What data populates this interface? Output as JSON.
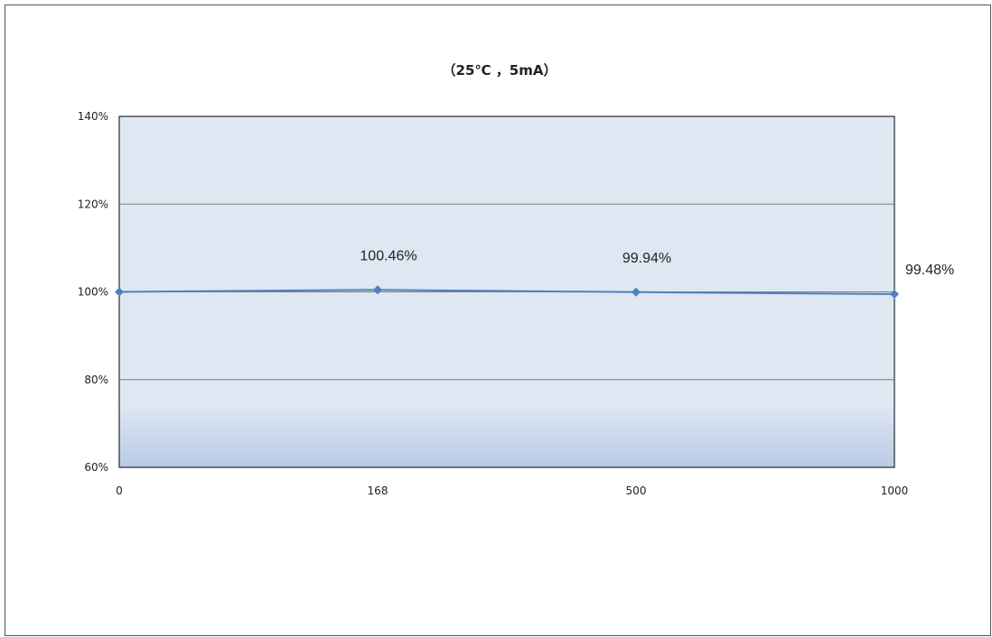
{
  "chart_data": {
    "type": "line",
    "title": "（25℃ ，5mA）",
    "xlabel": "",
    "ylabel": "",
    "categories": [
      "0",
      "168",
      "500",
      "1000"
    ],
    "series": [
      {
        "values": [
          100,
          100.46,
          99.94,
          99.48
        ],
        "data_labels": [
          "",
          "100.46%",
          "99.94%",
          "99.48%"
        ],
        "color": "#4f81bd"
      }
    ],
    "ylim": [
      60,
      140
    ],
    "y_ticks": [
      60,
      80,
      100,
      120,
      140
    ],
    "y_tick_labels": [
      "60%",
      "80%",
      "100%",
      "120%",
      "140%"
    ],
    "grid": true,
    "legend": "none",
    "plot_background": "#dfe7f3",
    "plot_background_bottom": "#b9cbe6",
    "gridline_color": "#7f7f7f"
  }
}
